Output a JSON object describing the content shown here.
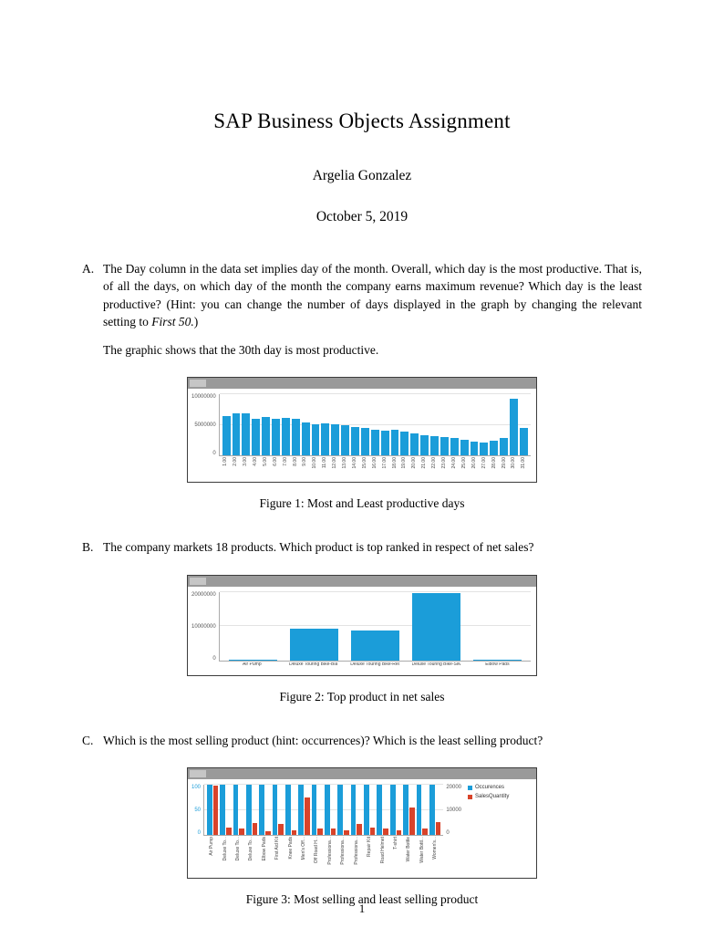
{
  "document": {
    "title": "SAP Business Objects Assignment",
    "author": "Argelia Gonzalez",
    "date": "October 5, 2019",
    "page_number": "1"
  },
  "questions": {
    "a": {
      "label": "A.",
      "text_before_italic": "The Day column in the data set implies day of the month. Overall, which day is the most productive. That is, of all the days, on which day of the month the company earns maximum revenue? Which day is the least productive? (Hint: you can change the number of days displayed in the graph by changing the relevant setting to ",
      "text_italic": "First 50.",
      "text_after_italic": ")",
      "answer": "The graphic shows that the 30th day is most productive."
    },
    "b": {
      "label": "B.",
      "text": "The company markets 18 products. Which product is top ranked in respect of net sales?"
    },
    "c": {
      "label": "C.",
      "text": "Which is the most selling product (hint: occurrences)? Which is the least selling product?"
    }
  },
  "figures": [
    {
      "caption": "Figure 1: Most and Least productive days"
    },
    {
      "caption": "Figure 2: Top product in net sales"
    },
    {
      "caption": "Figure 3: Most selling and least selling product"
    }
  ],
  "colors": {
    "bar_blue": "#1b9dd9",
    "bar_red": "#d8432a",
    "chart_header_gray": "#9a9a9a"
  },
  "chart_data": [
    {
      "type": "bar",
      "title": "",
      "categories": [
        "1.00",
        "2.00",
        "3.00",
        "4.00",
        "5.00",
        "6.00",
        "7.00",
        "8.00",
        "9.00",
        "10.00",
        "11.00",
        "12.00",
        "13.00",
        "14.00",
        "15.00",
        "16.00",
        "17.00",
        "18.00",
        "19.00",
        "20.00",
        "21.00",
        "22.00",
        "23.00",
        "24.00",
        "25.00",
        "26.00",
        "27.00",
        "28.00",
        "29.00",
        "30.00",
        "31.00"
      ],
      "values": [
        6500000,
        7000000,
        6900000,
        6100000,
        6300000,
        6100000,
        6200000,
        6100000,
        5500000,
        5100000,
        5300000,
        5100000,
        5000000,
        4700000,
        4600000,
        4300000,
        4100000,
        4200000,
        3900000,
        3600000,
        3400000,
        3200000,
        3000000,
        2900000,
        2600000,
        2300000,
        2200000,
        2400000,
        2900000,
        9400000,
        4500000
      ],
      "xlabel": "",
      "ylabel": "",
      "ylim": [
        0,
        10000000
      ],
      "yticks": [
        "10000000",
        "5000000",
        "0"
      ],
      "bar_color": "#1b9dd9",
      "xlabel_rotate": true,
      "grid": true
    },
    {
      "type": "bar",
      "title": "",
      "categories": [
        "Air Pump",
        "Deluxe Touring Bike-Black",
        "Deluxe Touring Bike-Red",
        "Deluxe Touring Bike-Silver",
        "Elbow Pads"
      ],
      "values": [
        150000,
        9300000,
        8700000,
        19600000,
        200000
      ],
      "xlabel": "",
      "ylabel": "",
      "ylim": [
        0,
        20000000
      ],
      "yticks": [
        "20000000",
        "10000000",
        "0"
      ],
      "bar_color": "#1b9dd9",
      "xlabel_rotate": false,
      "grid": true
    },
    {
      "type": "bar",
      "title": "",
      "categories": [
        "Air Pump",
        "Deluxe To...",
        "Deluxe To...",
        "Deluxe To...",
        "Elbow Pads",
        "First Aid Kit",
        "Knee Pads",
        "Men's Off...",
        "Off Road H...",
        "Professiona...",
        "Professiona...",
        "Professiona...",
        "Repair Kit",
        "Road Helmet",
        "T-shirt",
        "Water Bottle",
        "Water Bottl...",
        "Women's..."
      ],
      "series": [
        {
          "name": "Occurences",
          "axis": "left",
          "color": "#1b9dd9",
          "values": [
            100,
            100,
            100,
            100,
            100,
            100,
            100,
            100,
            100,
            100,
            100,
            100,
            100,
            100,
            100,
            100,
            100,
            100
          ]
        },
        {
          "name": "SalesQuantity",
          "axis": "right",
          "color": "#d8432a",
          "values": [
            19500,
            3000,
            2400,
            4800,
            1600,
            4400,
            2000,
            15000,
            2400,
            2400,
            2000,
            4400,
            3000,
            2400,
            2000,
            11000,
            2600,
            5000
          ]
        }
      ],
      "left_axis": {
        "max": 100,
        "ticks": [
          "100",
          "50",
          "0"
        ],
        "color": "#1b9dd9"
      },
      "right_axis": {
        "max": 20000,
        "ticks": [
          "20000",
          "10000",
          "0"
        ],
        "color": "#555555"
      },
      "legend": [
        "Occurences",
        "SalesQuantity"
      ],
      "legend_position": "right",
      "xlabel_rotate": true,
      "grid": true
    }
  ]
}
